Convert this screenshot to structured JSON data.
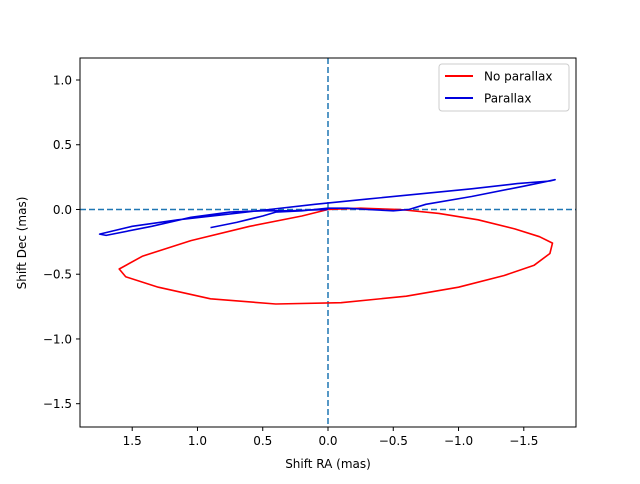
{
  "chart_data": {
    "type": "line",
    "title": "",
    "xlabel": "Shift RA (mas)",
    "ylabel": "Shift Dec (mas)",
    "xlim": [
      1.9,
      -1.9
    ],
    "ylim": [
      -1.68,
      1.17
    ],
    "x_inverted": true,
    "grid": false,
    "legend_position": "upper right",
    "xticks": [
      {
        "value": 1.5,
        "label": "1.5"
      },
      {
        "value": 1.0,
        "label": "1.0"
      },
      {
        "value": 0.5,
        "label": "0.5"
      },
      {
        "value": 0.0,
        "label": "0.0"
      },
      {
        "value": -0.5,
        "label": "−0.5"
      },
      {
        "value": -1.0,
        "label": "−1.0"
      },
      {
        "value": -1.5,
        "label": "−1.5"
      }
    ],
    "yticks": [
      {
        "value": 1.0,
        "label": "1.0"
      },
      {
        "value": 0.5,
        "label": "0.5"
      },
      {
        "value": 0.0,
        "label": "0.0"
      },
      {
        "value": -0.5,
        "label": "−0.5"
      },
      {
        "value": -1.0,
        "label": "−1.0"
      },
      {
        "value": -1.5,
        "label": "−1.5"
      }
    ],
    "reference_lines": [
      {
        "orientation": "horizontal",
        "value": 0.0,
        "style": "dashed",
        "color": "#1f77b4"
      },
      {
        "orientation": "vertical",
        "value": 0.0,
        "style": "dashed",
        "color": "#1f77b4"
      }
    ],
    "series": [
      {
        "name": "No parallax",
        "color": "#ff0000",
        "x": [
          0.0,
          -0.25,
          -0.55,
          -0.85,
          -1.15,
          -1.43,
          -1.62,
          -1.72,
          -1.7,
          -1.58,
          -1.35,
          -1.0,
          -0.6,
          -0.1,
          0.4,
          0.9,
          1.3,
          1.55,
          1.6,
          1.42,
          1.05,
          0.6,
          0.2,
          0.0
        ],
        "y": [
          0.0,
          0.01,
          0.0,
          -0.03,
          -0.08,
          -0.15,
          -0.21,
          -0.26,
          -0.34,
          -0.43,
          -0.51,
          -0.6,
          -0.67,
          -0.72,
          -0.73,
          -0.69,
          -0.6,
          -0.52,
          -0.46,
          -0.36,
          -0.24,
          -0.13,
          -0.05,
          0.0
        ]
      },
      {
        "name": "Parallax",
        "color": "#0000dd",
        "x": [
          0.0,
          0.3,
          0.5,
          0.75,
          1.05,
          1.35,
          1.7,
          1.75,
          1.5,
          1.15,
          0.8,
          0.45,
          0.1,
          -0.3,
          -0.7,
          -1.1,
          -1.45,
          -1.7,
          -1.74,
          -1.5,
          -1.1,
          -0.75,
          -0.62,
          -0.5,
          -0.3,
          -0.15,
          0.0,
          0.2,
          0.4,
          0.5,
          0.62,
          0.7,
          0.8,
          0.9
        ],
        "y": [
          0.0,
          -0.01,
          -0.01,
          -0.02,
          -0.06,
          -0.13,
          -0.2,
          -0.19,
          -0.13,
          -0.08,
          -0.04,
          0.0,
          0.04,
          0.08,
          0.12,
          0.16,
          0.2,
          0.22,
          0.23,
          0.18,
          0.1,
          0.04,
          0.0,
          -0.01,
          0.0,
          0.01,
          0.01,
          -0.01,
          -0.02,
          -0.05,
          -0.08,
          -0.1,
          -0.12,
          -0.14
        ]
      }
    ]
  }
}
